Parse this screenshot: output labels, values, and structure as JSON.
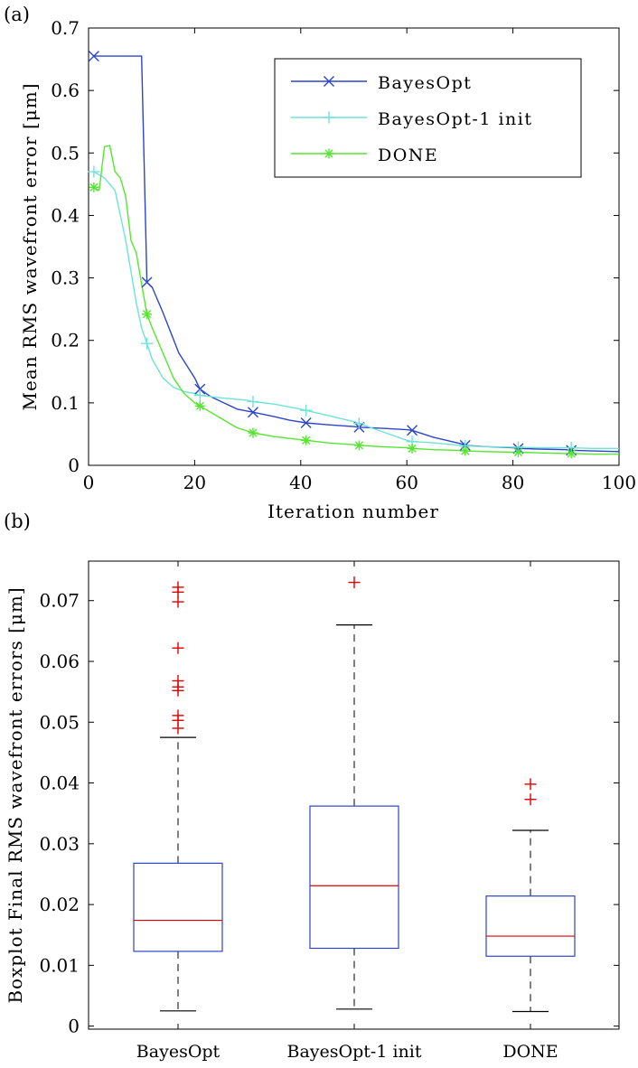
{
  "chart_data": [
    {
      "panel_label": "(a)",
      "type": "line",
      "xlabel": "Iteration number",
      "ylabel": "Mean RMS wavefront error [μm]",
      "xlim": [
        0,
        100
      ],
      "ylim": [
        0,
        0.7
      ],
      "xticks": [
        "0",
        "20",
        "40",
        "60",
        "80",
        "100"
      ],
      "yticks": [
        "0",
        "0.1",
        "0.2",
        "0.3",
        "0.4",
        "0.5",
        "0.6",
        "0.7"
      ],
      "legend_position": "top-right",
      "series": [
        {
          "name": "BayesOpt",
          "color": "#2d45c8",
          "marker": "x",
          "x": [
            1,
            10,
            11,
            12,
            14,
            17,
            20,
            21,
            23,
            26,
            28,
            31,
            35,
            38,
            41,
            45,
            50,
            51,
            56,
            60,
            61,
            65,
            70,
            71,
            75,
            80,
            81,
            85,
            90,
            91,
            95,
            100
          ],
          "y": [
            0.655,
            0.655,
            0.293,
            0.285,
            0.245,
            0.18,
            0.14,
            0.122,
            0.11,
            0.098,
            0.09,
            0.085,
            0.078,
            0.072,
            0.068,
            0.065,
            0.062,
            0.061,
            0.059,
            0.057,
            0.056,
            0.045,
            0.035,
            0.032,
            0.03,
            0.028,
            0.027,
            0.026,
            0.025,
            0.024,
            0.023,
            0.022
          ],
          "marker_x": [
            1,
            11,
            21,
            31,
            41,
            51,
            61,
            71,
            81,
            91
          ]
        },
        {
          "name": "BayesOpt-1 init",
          "color": "#6ee3d8",
          "marker": "+",
          "x": [
            1,
            3,
            5,
            7,
            8,
            9,
            10,
            11,
            12,
            14,
            16,
            18,
            20,
            21,
            25,
            30,
            31,
            35,
            40,
            41,
            45,
            50,
            51,
            55,
            60,
            61,
            65,
            70,
            71,
            75,
            80,
            81,
            85,
            90,
            91,
            95,
            100
          ],
          "y": [
            0.47,
            0.46,
            0.44,
            0.36,
            0.31,
            0.26,
            0.22,
            0.195,
            0.17,
            0.14,
            0.125,
            0.118,
            0.115,
            0.112,
            0.108,
            0.104,
            0.102,
            0.098,
            0.09,
            0.088,
            0.08,
            0.07,
            0.067,
            0.055,
            0.04,
            0.038,
            0.036,
            0.032,
            0.031,
            0.03,
            0.029,
            0.029,
            0.028,
            0.028,
            0.028,
            0.027,
            0.027
          ],
          "marker_x": [
            1,
            11,
            21,
            31,
            41,
            51,
            61,
            71,
            81,
            91
          ]
        },
        {
          "name": "DONE",
          "color": "#55e630",
          "marker": "*",
          "x": [
            1,
            2,
            3,
            4,
            5,
            6,
            7,
            8,
            9,
            10,
            11,
            12,
            14,
            16,
            18,
            20,
            21,
            23,
            26,
            28,
            31,
            35,
            38,
            41,
            45,
            50,
            51,
            55,
            60,
            61,
            65,
            70,
            71,
            75,
            80,
            81,
            85,
            90,
            91,
            95,
            100
          ],
          "y": [
            0.445,
            0.44,
            0.51,
            0.512,
            0.47,
            0.46,
            0.43,
            0.36,
            0.34,
            0.29,
            0.242,
            0.22,
            0.18,
            0.14,
            0.115,
            0.1,
            0.095,
            0.085,
            0.07,
            0.06,
            0.052,
            0.046,
            0.043,
            0.04,
            0.036,
            0.033,
            0.032,
            0.03,
            0.028,
            0.027,
            0.025,
            0.024,
            0.023,
            0.022,
            0.021,
            0.021,
            0.02,
            0.019,
            0.019,
            0.018,
            0.018
          ],
          "marker_x": [
            1,
            11,
            21,
            31,
            41,
            51,
            61,
            71,
            81,
            91
          ]
        }
      ]
    },
    {
      "panel_label": "(b)",
      "type": "box",
      "ylabel": "Boxplot Final RMS wavefront errors [μm]",
      "ylim": [
        -0.0005,
        0.0765
      ],
      "yticks": [
        "0",
        "0.01",
        "0.02",
        "0.03",
        "0.04",
        "0.05",
        "0.06",
        "0.07"
      ],
      "box_color": "#2d45c8",
      "median_color": "#e00000",
      "whisker_color": "#000000",
      "outlier_color": "#e00000",
      "categories": [
        "BayesOpt",
        "BayesOpt-1 init",
        "DONE"
      ],
      "boxes": [
        {
          "whisker_low": 0.0025,
          "q1": 0.0123,
          "median": 0.0174,
          "q3": 0.0268,
          "whisker_high": 0.0475,
          "outliers": [
            0.049,
            0.0503,
            0.0511,
            0.0552,
            0.0558,
            0.0568,
            0.0622,
            0.0698,
            0.0714,
            0.0722
          ]
        },
        {
          "whisker_low": 0.0028,
          "q1": 0.0128,
          "median": 0.0231,
          "q3": 0.0362,
          "whisker_high": 0.066,
          "outliers": [
            0.073
          ]
        },
        {
          "whisker_low": 0.0024,
          "q1": 0.0115,
          "median": 0.0148,
          "q3": 0.0214,
          "whisker_high": 0.0322,
          "outliers": [
            0.0373,
            0.0398
          ]
        }
      ]
    }
  ]
}
